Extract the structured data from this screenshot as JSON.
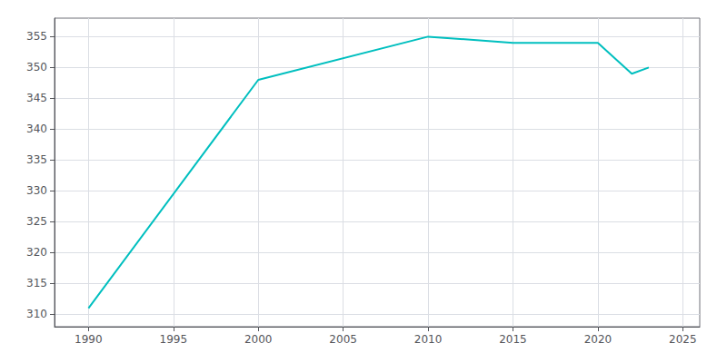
{
  "chart_data": {
    "type": "line",
    "x": [
      1990,
      2000,
      2010,
      2015,
      2020,
      2022,
      2023
    ],
    "values": [
      311,
      348,
      355,
      354,
      354,
      349,
      350
    ],
    "color": "#00BFBF",
    "xlim": [
      1988,
      2026
    ],
    "ylim": [
      308,
      358
    ],
    "xticks": [
      1990,
      1995,
      2000,
      2005,
      2010,
      2015,
      2020,
      2025
    ],
    "yticks": [
      310,
      315,
      320,
      325,
      330,
      335,
      340,
      345,
      350,
      355
    ],
    "grid": true
  }
}
